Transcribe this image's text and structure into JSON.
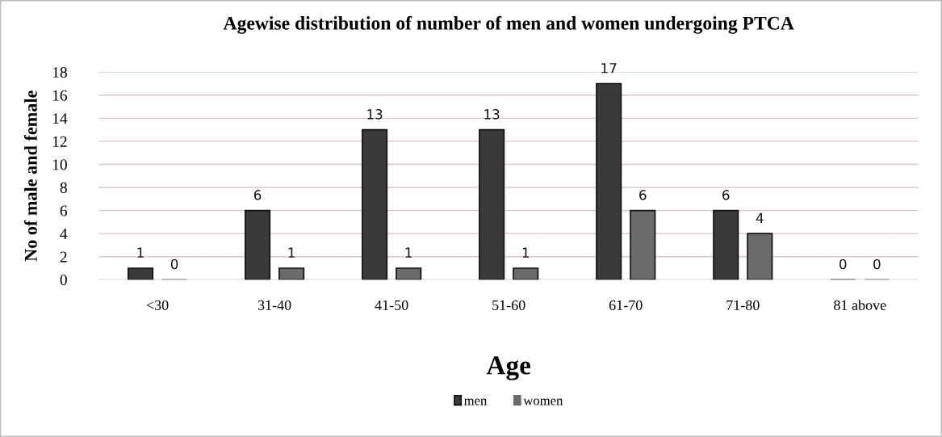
{
  "chart_data": {
    "type": "bar",
    "title": "Agewise distribution of number of men and women undergoing PTCA",
    "xlabel": "Age",
    "ylabel": "No of male and female",
    "categories": [
      "<30",
      "31-40",
      "41-50",
      "51-60",
      "61-70",
      "71-80",
      "81 above"
    ],
    "series": [
      {
        "name": "men",
        "color": "#3a3a3a",
        "values": [
          1,
          6,
          13,
          13,
          17,
          6,
          0
        ]
      },
      {
        "name": "women",
        "color": "#6b6b6b",
        "values": [
          0,
          1,
          1,
          1,
          6,
          4,
          0
        ]
      }
    ],
    "ylim": [
      0,
      18
    ],
    "yticks": [
      0,
      2,
      4,
      6,
      8,
      10,
      12,
      14,
      16,
      18
    ],
    "grid": "y",
    "legend": "bottom",
    "data_labels": true
  }
}
